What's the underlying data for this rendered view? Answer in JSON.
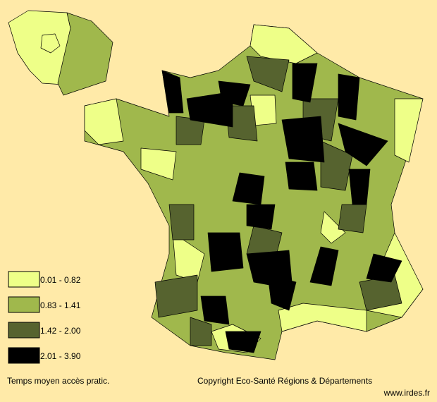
{
  "legend": {
    "classes": [
      {
        "label": "0.01 - 0.82",
        "color": "#eeff88"
      },
      {
        "label": "0.83 - 1.41",
        "color": "#a0b84c"
      },
      {
        "label": "1.42 - 2.00",
        "color": "#56632f"
      },
      {
        "label": "2.01 - 3.90",
        "color": "#000000"
      }
    ]
  },
  "caption": "Temps moyen accès pratic.",
  "copyright": "Copyright Eco-Santé Régions & Départements",
  "url": "www.irdes.fr"
}
